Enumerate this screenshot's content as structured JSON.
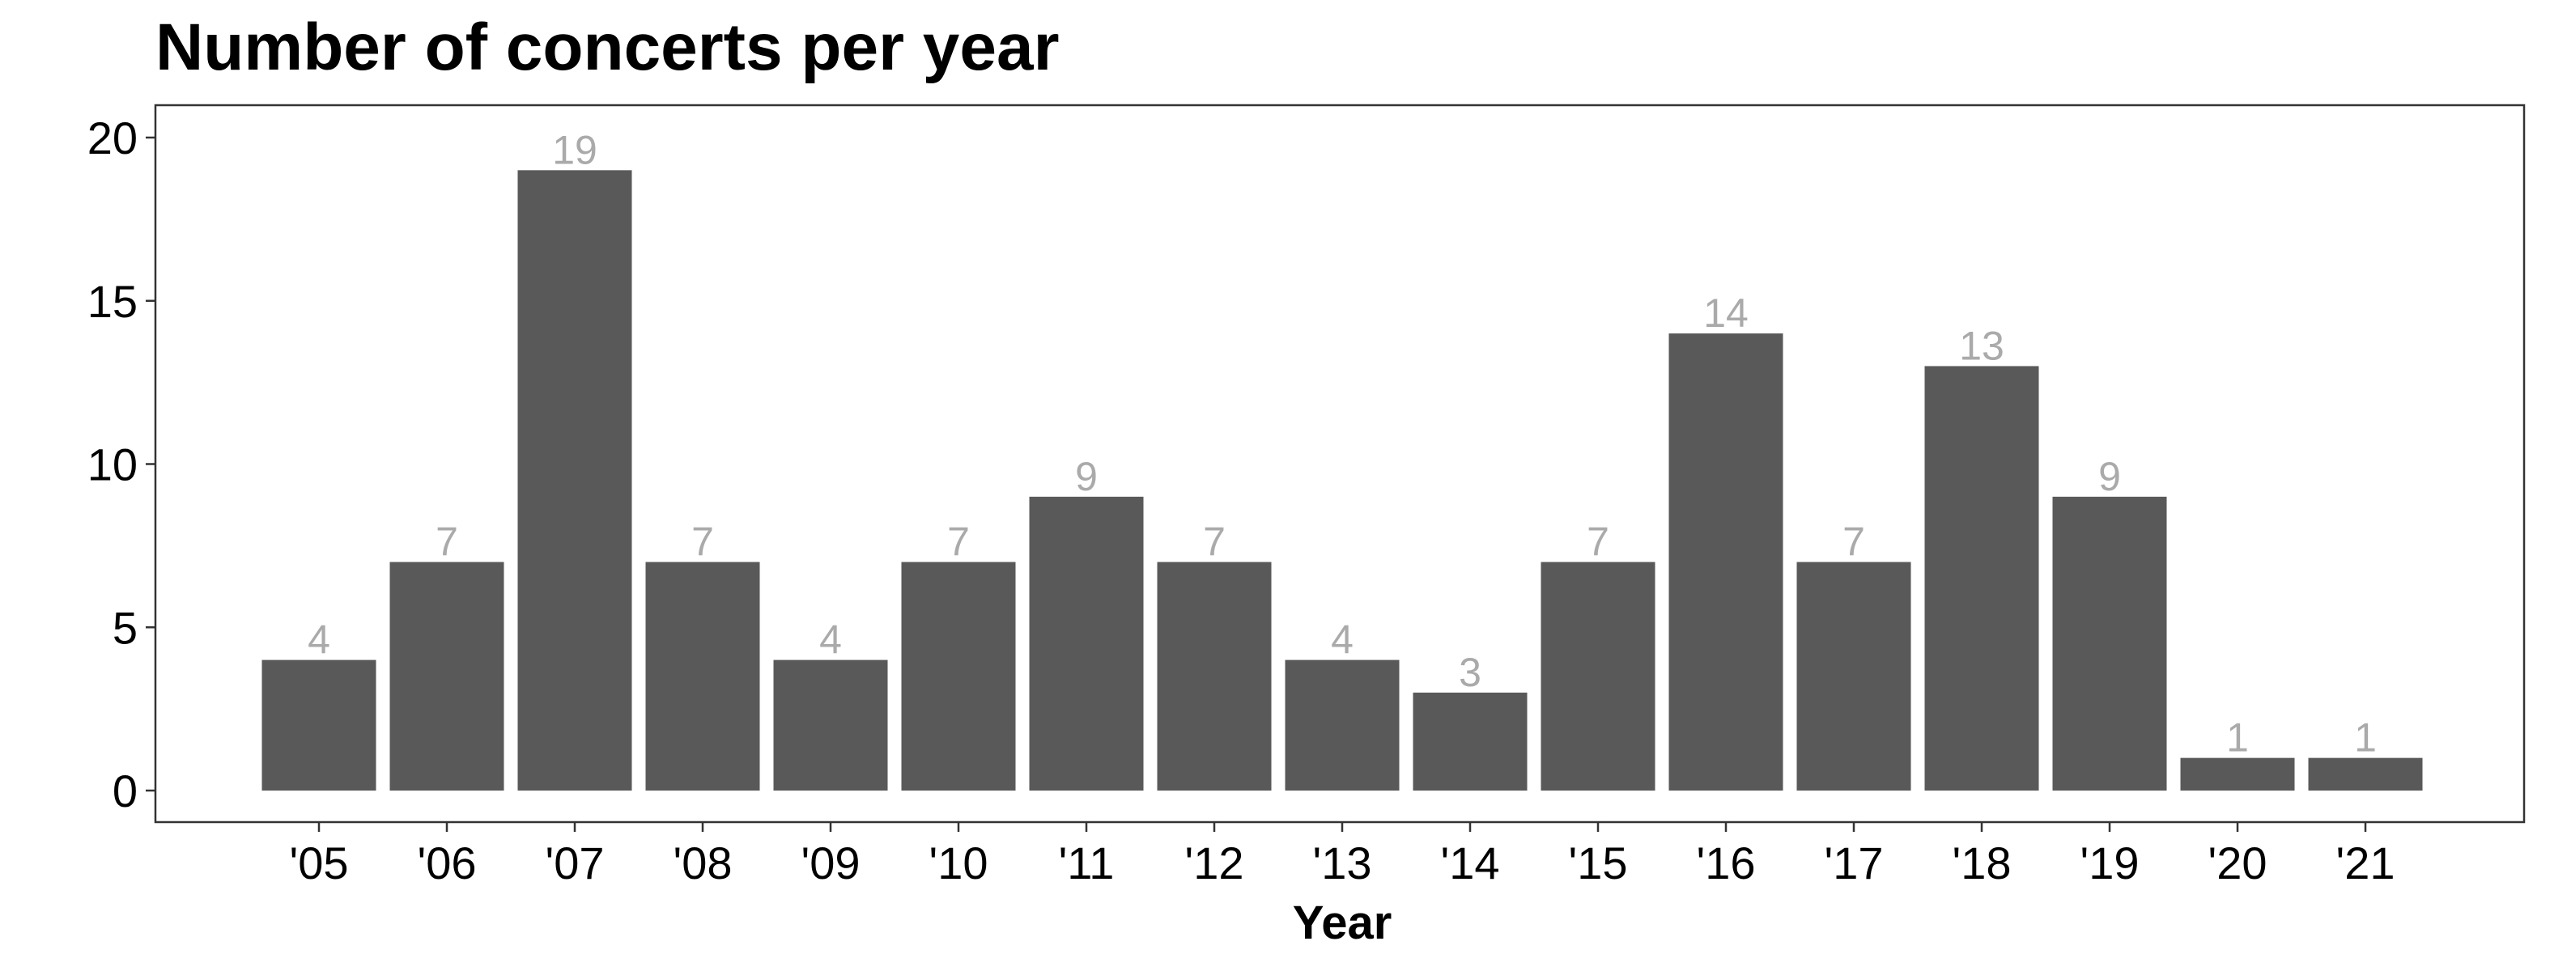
{
  "chart_data": {
    "type": "bar",
    "title": "Number of concerts per year",
    "xlabel": "Year",
    "ylabel": "",
    "categories": [
      "'05",
      "'06",
      "'07",
      "'08",
      "'09",
      "'10",
      "'11",
      "'12",
      "'13",
      "'14",
      "'15",
      "'16",
      "'17",
      "'18",
      "'19",
      "'20",
      "'21"
    ],
    "values": [
      4,
      7,
      19,
      7,
      4,
      7,
      9,
      7,
      4,
      3,
      7,
      14,
      7,
      13,
      9,
      1,
      1
    ],
    "ylim": [
      0,
      20
    ],
    "yticks": [
      0,
      5,
      10,
      15,
      20
    ],
    "grid": false,
    "legend": "none",
    "colors": {
      "bar": "#595959",
      "data_label": "#aaaaaa",
      "axis": "#333333",
      "text": "#000000"
    }
  }
}
